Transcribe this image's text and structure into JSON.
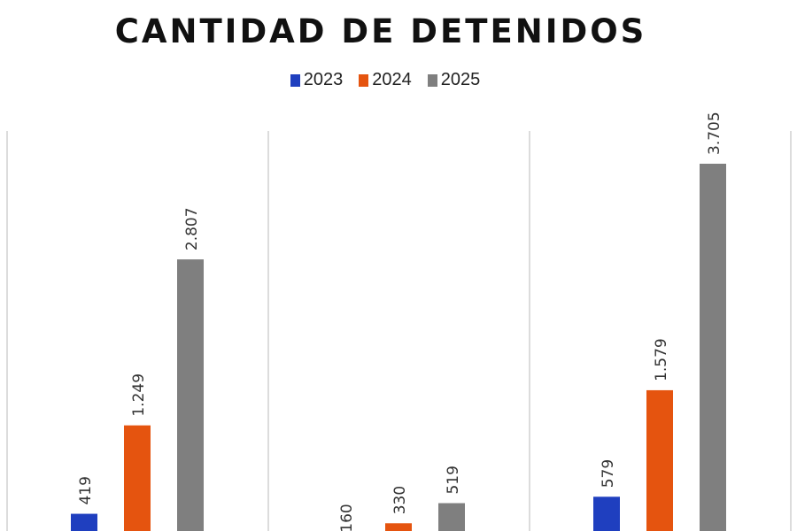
{
  "chart_data": {
    "type": "bar",
    "title": "CANTIDAD DE DETENIDOS",
    "categories": [
      "",
      "",
      ""
    ],
    "series": [
      {
        "name": "2023",
        "color": "#1f3fbf",
        "values": [
          419,
          160,
          579
        ],
        "labels": [
          "419",
          "160",
          "579"
        ]
      },
      {
        "name": "2024",
        "color": "#e5540f",
        "values": [
          1249,
          330,
          1579
        ],
        "labels": [
          "1.249",
          "330",
          "1.579"
        ]
      },
      {
        "name": "2025",
        "color": "#7f7f7f",
        "values": [
          2807,
          519,
          3705
        ],
        "labels": [
          "2.807",
          "519",
          "3.705"
        ]
      }
    ],
    "legend_position": "top",
    "grid": false,
    "xlabel": "",
    "ylabel": ""
  }
}
